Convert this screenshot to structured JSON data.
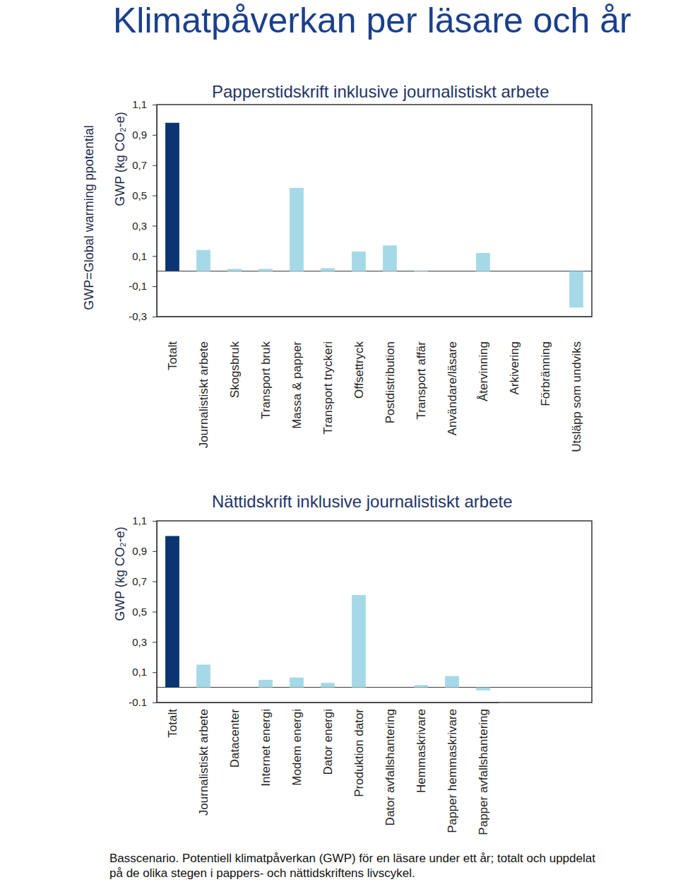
{
  "page": {
    "title": "Klimatpåverkan per läsare och år",
    "note": "GWP=Global warming ppotential",
    "caption": [
      "Basscenario. Potentiell klimatpåverkan (GWP) för en läsare under ett år; totalt och uppdelat",
      "på de olika stegen i pappers- och nättidskriftens livscykel."
    ]
  },
  "chart_data": [
    {
      "type": "bar",
      "title": "Papperstidskrift inklusive journalistiskt arbete",
      "ylabel": "GWP (kg CO₂-e)",
      "categories": [
        "Totalt",
        "Journalistiskt arbete",
        "Skogsbruk",
        "Transport bruk",
        "Massa &  papper",
        "Transport tryckeri",
        "Offsettryck",
        "Postdistribution",
        "Transport affär",
        "Användare/läsare",
        "Återvinning",
        "Arkivering",
        "Förbränning",
        "Utsläpp som undviks"
      ],
      "values": [
        0.98,
        0.14,
        0.015,
        0.015,
        0.55,
        0.02,
        0.13,
        0.17,
        0.005,
        0,
        0.12,
        0,
        0,
        -0.24
      ],
      "colors": [
        "#0b3572",
        "#a6d9e8",
        "#a6d9e8",
        "#a6d9e8",
        "#a6d9e8",
        "#a6d9e8",
        "#a6d9e8",
        "#a6d9e8",
        "#a6d9e8",
        "#a6d9e8",
        "#a6d9e8",
        "#a6d9e8",
        "#a6d9e8",
        "#a6d9e8"
      ],
      "ylim": [
        -0.3,
        1.1
      ],
      "yticks": [
        {
          "value": -0.3,
          "label": "-0,3"
        },
        {
          "value": -0.1,
          "label": "-0,1"
        },
        {
          "value": 0.1,
          "label": "0,1"
        },
        {
          "value": 0.3,
          "label": "0,3"
        },
        {
          "value": 0.5,
          "label": "0,5"
        },
        {
          "value": 0.7,
          "label": "0,7"
        },
        {
          "value": 0.9,
          "label": "0,9"
        },
        {
          "value": 1.1,
          "label": "1,1"
        }
      ]
    },
    {
      "type": "bar",
      "title": "Nättidskrift inklusive journalistiskt arbete",
      "ylabel": "GWP (kg CO₂-e)",
      "categories": [
        "Totalt",
        "Journalistiskt arbete",
        "Datacenter",
        "Internet energi",
        "Modem energi",
        "Dator energi",
        "Produktion dator",
        "Dator avfallshantering",
        "Hemmaskrivare",
        "Papper hemmaskrivare",
        "Papper avfallshantering"
      ],
      "values": [
        1.0,
        0.15,
        0,
        0.05,
        0.065,
        0.03,
        0.61,
        0,
        0.015,
        0.075,
        -0.02
      ],
      "colors": [
        "#0b3572",
        "#a6d9e8",
        "#a6d9e8",
        "#a6d9e8",
        "#a6d9e8",
        "#a6d9e8",
        "#a6d9e8",
        "#a6d9e8",
        "#a6d9e8",
        "#a6d9e8",
        "#a6d9e8"
      ],
      "ylim": [
        -0.1,
        1.1
      ],
      "yticks": [
        {
          "value": -0.1,
          "label": "-0.1"
        },
        {
          "value": 0.1,
          "label": "0,1"
        },
        {
          "value": 0.3,
          "label": "0,3"
        },
        {
          "value": 0.5,
          "label": "0,5"
        },
        {
          "value": 0.7,
          "label": "0,7"
        },
        {
          "value": 0.9,
          "label": "0,9"
        },
        {
          "value": 1.1,
          "label": "1,1"
        }
      ]
    }
  ]
}
